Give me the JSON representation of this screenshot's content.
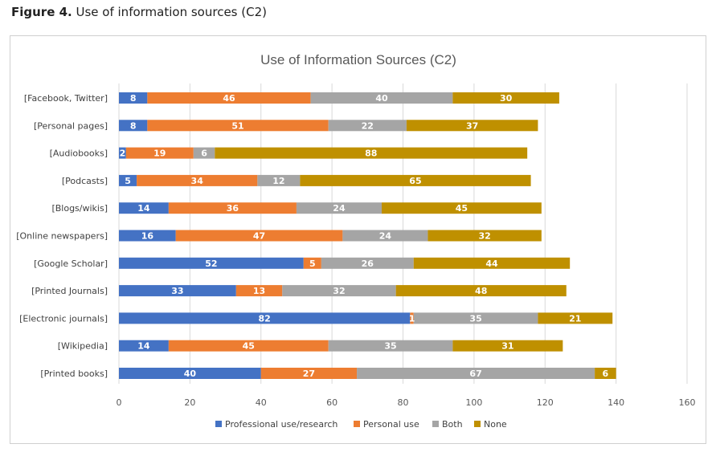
{
  "figure": {
    "caption_bold": "Figure 4.",
    "caption_rest": " Use of information sources (C2)"
  },
  "chart_data": {
    "type": "bar",
    "orientation": "horizontal",
    "stacked": true,
    "title": "Use  of Information Sources (C2)",
    "xlim": [
      0,
      160
    ],
    "xticks": [
      0,
      20,
      40,
      60,
      80,
      100,
      120,
      140,
      160
    ],
    "grid": true,
    "legend_position": "bottom",
    "categories": [
      "[Facebook, Twitter]",
      "[Personal pages]",
      "[Audiobooks]",
      "[Podcasts]",
      "[Blogs/wikis]",
      "[Online newspapers]",
      "[Google Scholar]",
      "[Printed Journals]",
      "[Electronic journals]",
      "[Wikipedia]",
      "[Printed books]"
    ],
    "series": [
      {
        "name": "Professional use/research",
        "color": "#4472C4",
        "values": [
          8,
          8,
          2,
          5,
          14,
          16,
          52,
          33,
          82,
          14,
          40
        ]
      },
      {
        "name": "Personal use",
        "color": "#ED7D31",
        "values": [
          46,
          51,
          19,
          34,
          36,
          47,
          5,
          13,
          1,
          45,
          27
        ]
      },
      {
        "name": "Both",
        "color": "#A5A5A5",
        "values": [
          40,
          22,
          6,
          12,
          24,
          24,
          26,
          32,
          35,
          35,
          67
        ]
      },
      {
        "name": "None",
        "color": "#BF9000",
        "values": [
          30,
          37,
          88,
          65,
          45,
          32,
          44,
          48,
          21,
          31,
          6
        ]
      }
    ]
  }
}
